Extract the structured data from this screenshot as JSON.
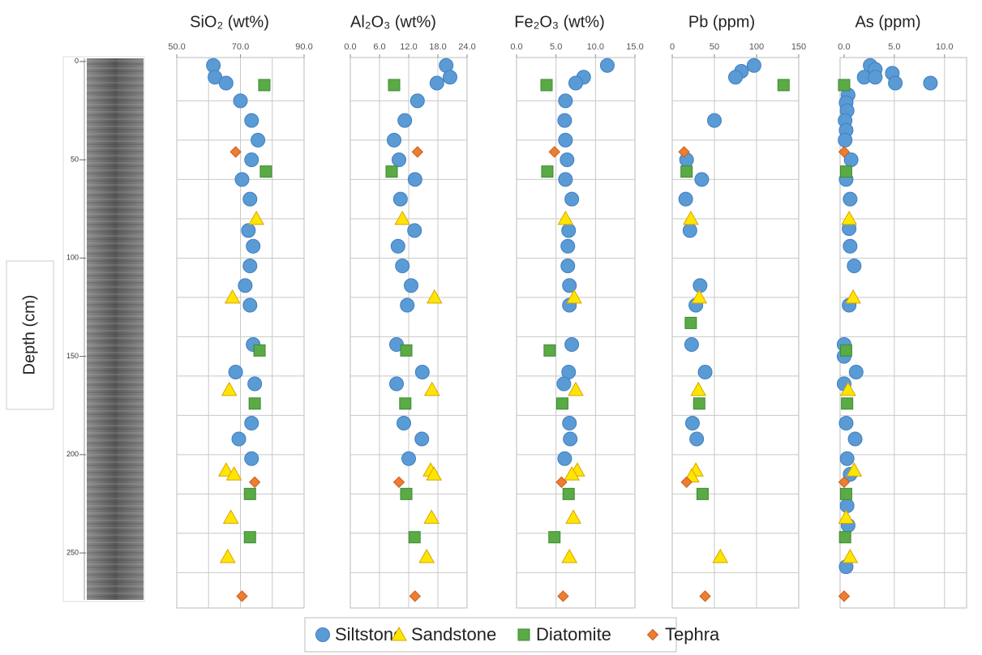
{
  "depth_axis": {
    "label": "Depth (cm)",
    "ylim": [
      -2,
      278
    ],
    "yticks": [
      0,
      50,
      100,
      150,
      200,
      250
    ],
    "ygrid": [
      20,
      40,
      60,
      80,
      100,
      120,
      140,
      160,
      180,
      200,
      220,
      240,
      260
    ]
  },
  "chart_data": [
    {
      "type": "scatter",
      "title": "SiO₂ (wt%)",
      "xlim": [
        50,
        90
      ],
      "xticks": [
        {
          "value": 50,
          "label": "50.0"
        },
        {
          "value": 70,
          "label": "70.0"
        },
        {
          "value": 90,
          "label": "90.0"
        }
      ],
      "xgrid": [
        60,
        70,
        80
      ],
      "series": [
        {
          "name": "Siltstone",
          "color": "#5b9bd5",
          "marker": "circle",
          "y": [
            2,
            8,
            11,
            20,
            30,
            40,
            50,
            60,
            70,
            86,
            94,
            104,
            114,
            124,
            144,
            158,
            164,
            184,
            192,
            202
          ],
          "x": [
            61.5,
            62,
            65.5,
            70,
            73.5,
            75.5,
            73.5,
            70.5,
            73,
            72.5,
            74,
            73,
            71.5,
            73,
            74,
            68.5,
            74.5,
            73.5,
            69.5,
            73.5
          ]
        },
        {
          "name": "Sandstone",
          "color": "#ffe600",
          "marker": "triangle",
          "y": [
            80,
            120,
            167,
            208,
            210,
            232,
            252
          ],
          "x": [
            75,
            67.5,
            66.5,
            65.5,
            68,
            67,
            66
          ]
        },
        {
          "name": "Diatomite",
          "color": "#5aaa46",
          "marker": "square",
          "y": [
            12,
            56,
            147,
            174,
            220,
            242
          ],
          "x": [
            77.5,
            78,
            76,
            74.5,
            73,
            73
          ]
        },
        {
          "name": "Tephra",
          "color": "#ed7d31",
          "marker": "diamond",
          "y": [
            46,
            214,
            272
          ],
          "x": [
            68.5,
            74.5,
            70.5
          ]
        }
      ]
    },
    {
      "type": "scatter",
      "title": "Al₂O₃ (wt%)",
      "xlim": [
        0,
        24
      ],
      "xticks": [
        {
          "value": 0,
          "label": "0.0"
        },
        {
          "value": 6,
          "label": "6.0"
        },
        {
          "value": 12,
          "label": "12.0"
        },
        {
          "value": 18,
          "label": "18.0"
        },
        {
          "value": 24,
          "label": "24.0"
        }
      ],
      "xgrid": [
        6,
        12,
        18
      ],
      "series": [
        {
          "name": "Siltstone",
          "color": "#5b9bd5",
          "marker": "circle",
          "y": [
            2,
            8,
            11,
            20,
            30,
            40,
            50,
            60,
            70,
            86,
            94,
            104,
            114,
            124,
            144,
            158,
            164,
            184,
            192,
            202
          ],
          "x": [
            19.7,
            20.5,
            17.8,
            13.8,
            11.2,
            9,
            10,
            13.3,
            10.3,
            13.2,
            9.8,
            10.7,
            12.5,
            11.7,
            9.5,
            14.8,
            9.5,
            11,
            14.7,
            12
          ]
        },
        {
          "name": "Sandstone",
          "color": "#ffe600",
          "marker": "triangle",
          "y": [
            80,
            120,
            167,
            208,
            210,
            232,
            252
          ],
          "x": [
            10.7,
            17.3,
            16.8,
            16.5,
            17.2,
            16.7,
            15.7
          ]
        },
        {
          "name": "Diatomite",
          "color": "#5aaa46",
          "marker": "square",
          "y": [
            12,
            56,
            147,
            174,
            220,
            242
          ],
          "x": [
            9,
            8.5,
            11.5,
            11.3,
            11.5,
            13.2
          ]
        },
        {
          "name": "Tephra",
          "color": "#ed7d31",
          "marker": "diamond",
          "y": [
            46,
            214,
            272
          ],
          "x": [
            13.8,
            10,
            13.3
          ]
        }
      ]
    },
    {
      "type": "scatter",
      "title": "Fe₂O₃ (wt%)",
      "xlim": [
        0,
        15
      ],
      "xticks": [
        {
          "value": 0,
          "label": "0.0"
        },
        {
          "value": 5,
          "label": "5.0"
        },
        {
          "value": 10,
          "label": "10.0"
        },
        {
          "value": 15,
          "label": "15.0"
        }
      ],
      "xgrid": [
        5,
        10
      ],
      "series": [
        {
          "name": "Siltstone",
          "color": "#5b9bd5",
          "marker": "circle",
          "y": [
            2,
            8,
            11,
            20,
            30,
            40,
            50,
            60,
            70,
            86,
            94,
            104,
            114,
            124,
            144,
            158,
            164,
            184,
            192,
            202
          ],
          "x": [
            11.5,
            8.5,
            7.5,
            6.2,
            6.1,
            6.2,
            6.4,
            6.2,
            7,
            6.6,
            6.5,
            6.5,
            6.7,
            6.7,
            7,
            6.6,
            6,
            6.7,
            6.8,
            6.1
          ]
        },
        {
          "name": "Sandstone",
          "color": "#ffe600",
          "marker": "triangle",
          "y": [
            80,
            120,
            167,
            208,
            210,
            232,
            252
          ],
          "x": [
            6.2,
            7.3,
            7.5,
            7.7,
            7,
            7.2,
            6.7
          ]
        },
        {
          "name": "Diatomite",
          "color": "#5aaa46",
          "marker": "square",
          "y": [
            12,
            56,
            147,
            174,
            220,
            242
          ],
          "x": [
            3.8,
            3.9,
            4.2,
            5.8,
            6.6,
            4.8
          ]
        },
        {
          "name": "Tephra",
          "color": "#ed7d31",
          "marker": "diamond",
          "y": [
            46,
            214,
            272
          ],
          "x": [
            4.8,
            5.7,
            5.9
          ]
        }
      ]
    },
    {
      "type": "scatter",
      "title": "Pb (ppm)",
      "xlim": [
        0,
        150
      ],
      "xticks": [
        0,
        50,
        100,
        150
      ],
      "xgrid": [
        50,
        100
      ],
      "series": [
        {
          "name": "Siltstone",
          "color": "#5b9bd5",
          "marker": "circle",
          "y": [
            2,
            5,
            8,
            30,
            50,
            60,
            70,
            86,
            114,
            124,
            144,
            158,
            184,
            192
          ],
          "x": [
            97,
            82,
            75,
            50,
            17,
            35,
            16,
            21,
            33,
            28,
            23,
            39,
            24,
            29
          ]
        },
        {
          "name": "Sandstone",
          "color": "#ffe600",
          "marker": "triangle",
          "y": [
            80,
            120,
            167,
            208,
            211,
            252
          ],
          "x": [
            22,
            32,
            31,
            28,
            23,
            57
          ]
        },
        {
          "name": "Diatomite",
          "color": "#5aaa46",
          "marker": "square",
          "y": [
            12,
            56,
            133,
            174,
            220
          ],
          "x": [
            132,
            17,
            22,
            32,
            36
          ]
        },
        {
          "name": "Tephra",
          "color": "#ed7d31",
          "marker": "diamond",
          "y": [
            46,
            214,
            272
          ],
          "x": [
            14,
            17,
            39
          ]
        }
      ]
    },
    {
      "type": "scatter",
      "title": "As (ppm)",
      "xlim": [
        -0.4,
        12.2
      ],
      "xticks": [
        {
          "value": 0,
          "label": "0.0"
        },
        {
          "value": 5,
          "label": "5.0"
        },
        {
          "value": 10,
          "label": "10.0"
        }
      ],
      "xgrid": [
        5,
        10
      ],
      "series": [
        {
          "name": "Siltstone",
          "color": "#5b9bd5",
          "marker": "circle",
          "y": [
            2,
            4,
            6,
            8,
            8,
            11,
            11,
            17,
            21,
            25,
            30,
            35,
            40,
            50,
            60,
            70,
            85,
            94,
            104,
            124,
            144,
            150,
            158,
            164,
            184,
            192,
            202,
            210,
            226,
            236,
            257
          ],
          "x": [
            2.6,
            3.1,
            4.8,
            2,
            3.1,
            5.1,
            8.6,
            0.4,
            0.2,
            0.3,
            0.1,
            0.2,
            0.1,
            0.7,
            0.2,
            0.6,
            0.5,
            0.6,
            1,
            0.5,
            0,
            0,
            1.2,
            0,
            0.2,
            1.1,
            0.3,
            0.6,
            0.3,
            0.4,
            0.2
          ]
        },
        {
          "name": "Sandstone",
          "color": "#ffe600",
          "marker": "triangle",
          "y": [
            80,
            120,
            167,
            208,
            232,
            252
          ],
          "x": [
            0.5,
            0.9,
            0.4,
            1,
            0.2,
            0.6
          ]
        },
        {
          "name": "Diatomite",
          "color": "#5aaa46",
          "marker": "square",
          "y": [
            12,
            56,
            147,
            174,
            220,
            242
          ],
          "x": [
            0,
            0.2,
            0.2,
            0.3,
            0.2,
            0.1
          ]
        },
        {
          "name": "Tephra",
          "color": "#ed7d31",
          "marker": "diamond",
          "y": [
            46,
            214,
            272
          ],
          "x": [
            0,
            0,
            0
          ]
        }
      ]
    }
  ]
}
